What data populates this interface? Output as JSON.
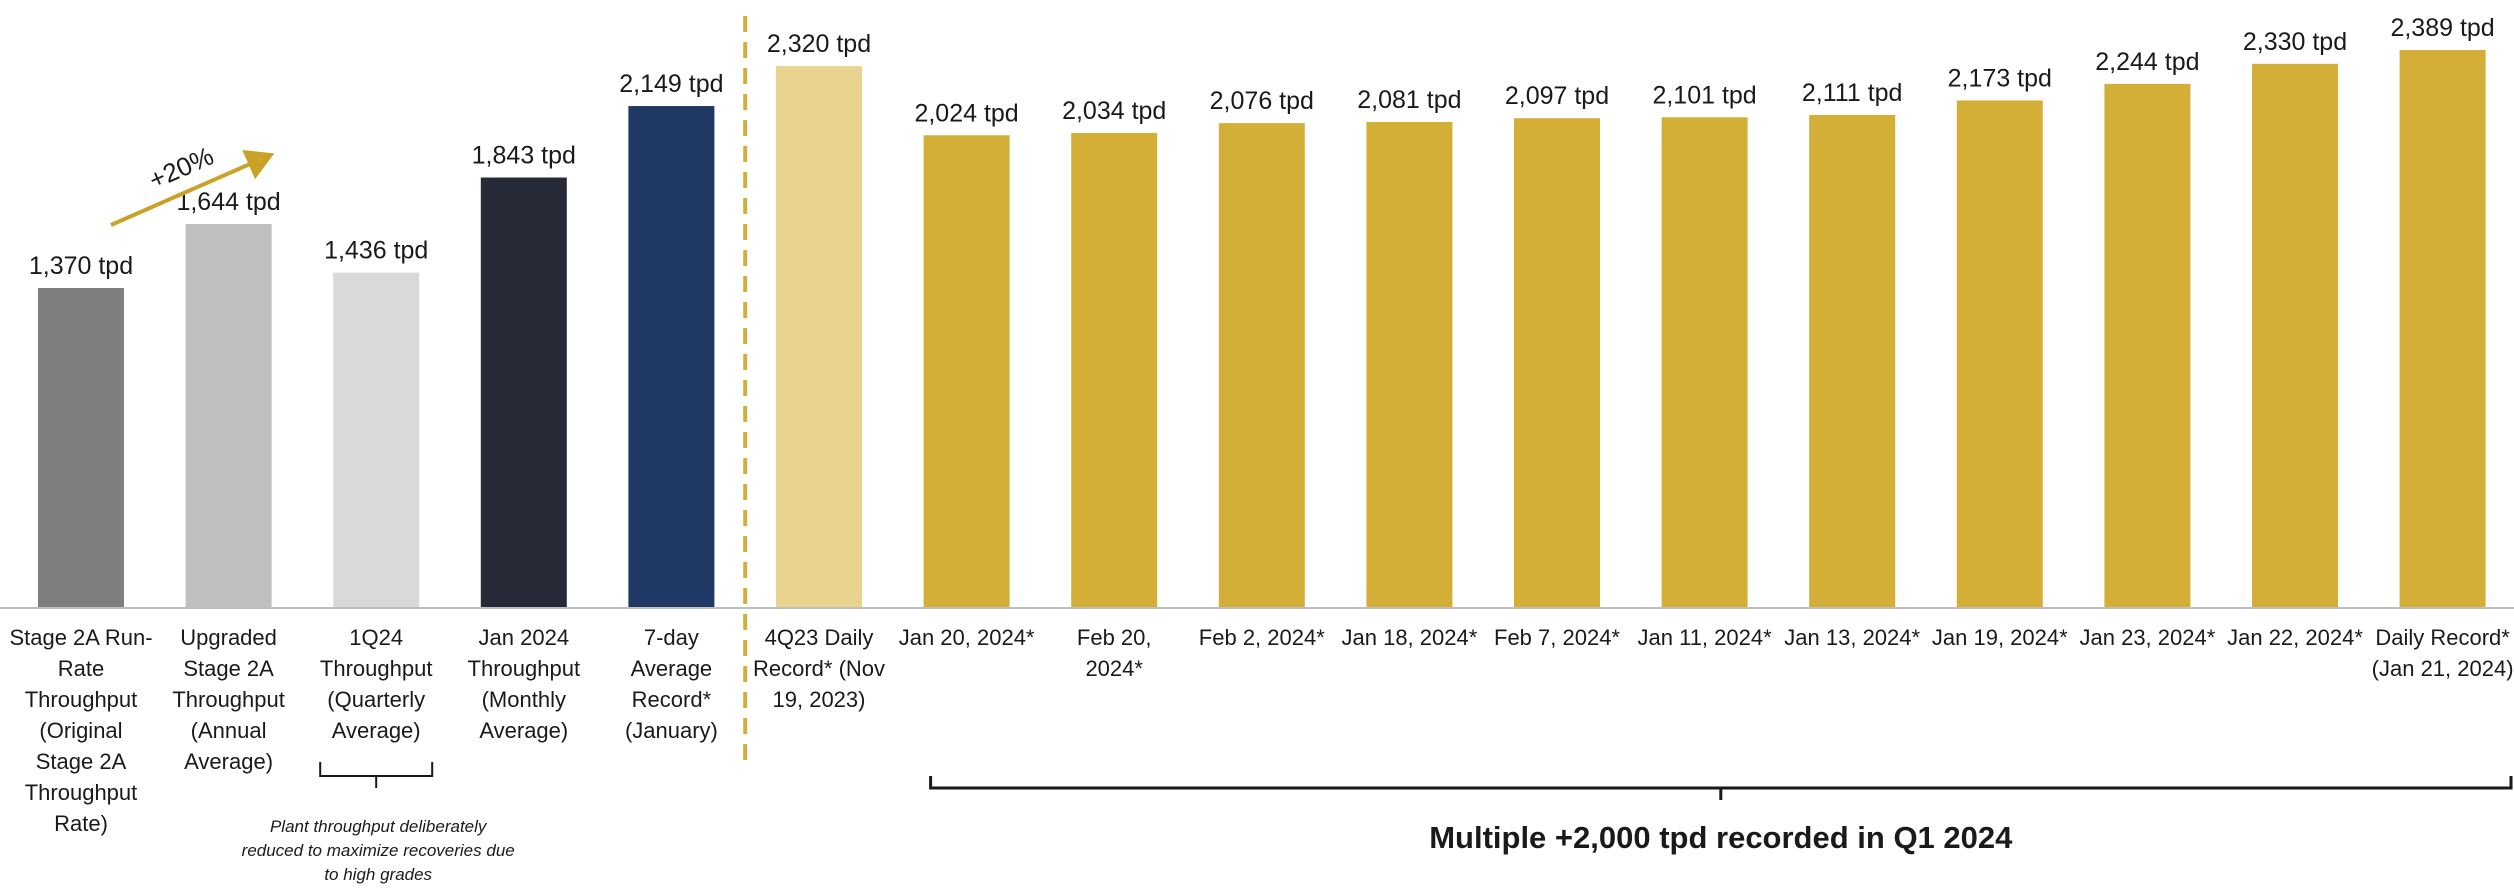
{
  "chart_data": {
    "type": "bar",
    "title": "",
    "xlabel": "",
    "ylabel": "",
    "unit": "tpd",
    "ylim": [
      0,
      2389
    ],
    "grid": false,
    "categories": [
      [
        "Stage 2A Run-",
        "Rate",
        "Throughput",
        "(Original",
        "Stage 2A",
        "Throughput",
        "Rate)"
      ],
      [
        "Upgraded",
        "Stage 2A",
        "Throughput",
        "(Annual",
        "Average)"
      ],
      [
        "1Q24",
        "Throughput",
        "(Quarterly",
        "Average)"
      ],
      [
        "Jan 2024",
        "Throughput",
        "(Monthly",
        "Average)"
      ],
      [
        "7-day",
        "Average",
        "Record*",
        "(January)"
      ],
      [
        "4Q23 Daily",
        "Record* (Nov",
        "19, 2023)"
      ],
      [
        "Jan 20, 2024*"
      ],
      [
        "Feb 20,",
        "2024*"
      ],
      [
        "Feb 2, 2024*"
      ],
      [
        "Jan 18, 2024*"
      ],
      [
        "Feb 7, 2024*"
      ],
      [
        "Jan 11, 2024*"
      ],
      [
        "Jan 13, 2024*"
      ],
      [
        "Jan 19, 2024*"
      ],
      [
        "Jan 23, 2024*"
      ],
      [
        "Jan 22, 2024*"
      ],
      [
        "Daily Record*",
        "(Jan 21, 2024)"
      ]
    ],
    "values": [
      1370,
      1644,
      1436,
      1843,
      2149,
      2320,
      2024,
      2034,
      2076,
      2081,
      2097,
      2101,
      2111,
      2173,
      2244,
      2330,
      2389
    ],
    "value_labels": [
      "1,370 tpd",
      "1,644 tpd",
      "1,436 tpd",
      "1,843 tpd",
      "2,149 tpd",
      "2,320 tpd",
      "2,024 tpd",
      "2,034 tpd",
      "2,076 tpd",
      "2,081 tpd",
      "2,097 tpd",
      "2,101 tpd",
      "2,111 tpd",
      "2,173 tpd",
      "2,244 tpd",
      "2,330 tpd",
      "2,389 tpd"
    ],
    "bar_colors": [
      "#7f7f7f",
      "#bfbfbf",
      "#d9d9d9",
      "#262b37",
      "#1f3864",
      "#e8d48f",
      "#d4af37",
      "#d4af37",
      "#d4af37",
      "#d4af37",
      "#d4af37",
      "#d4af37",
      "#d4af37",
      "#d4af37",
      "#d4af37",
      "#d4af37",
      "#d4af37"
    ],
    "annotations": {
      "growth": {
        "text": "+20%",
        "from_index": 0,
        "to_index": 1,
        "color": "#c9a227"
      },
      "quarter_note": {
        "index": 2,
        "lines": [
          "Plant throughput deliberately",
          "reduced to maximize recoveries due",
          "to high grades"
        ]
      },
      "divider": {
        "after_index": 4,
        "style": "dashed",
        "color": "#d4af37"
      },
      "group": {
        "from_index": 6,
        "to_index": 16,
        "text": "Multiple +2,000 tpd recorded in Q1 2024"
      }
    }
  }
}
